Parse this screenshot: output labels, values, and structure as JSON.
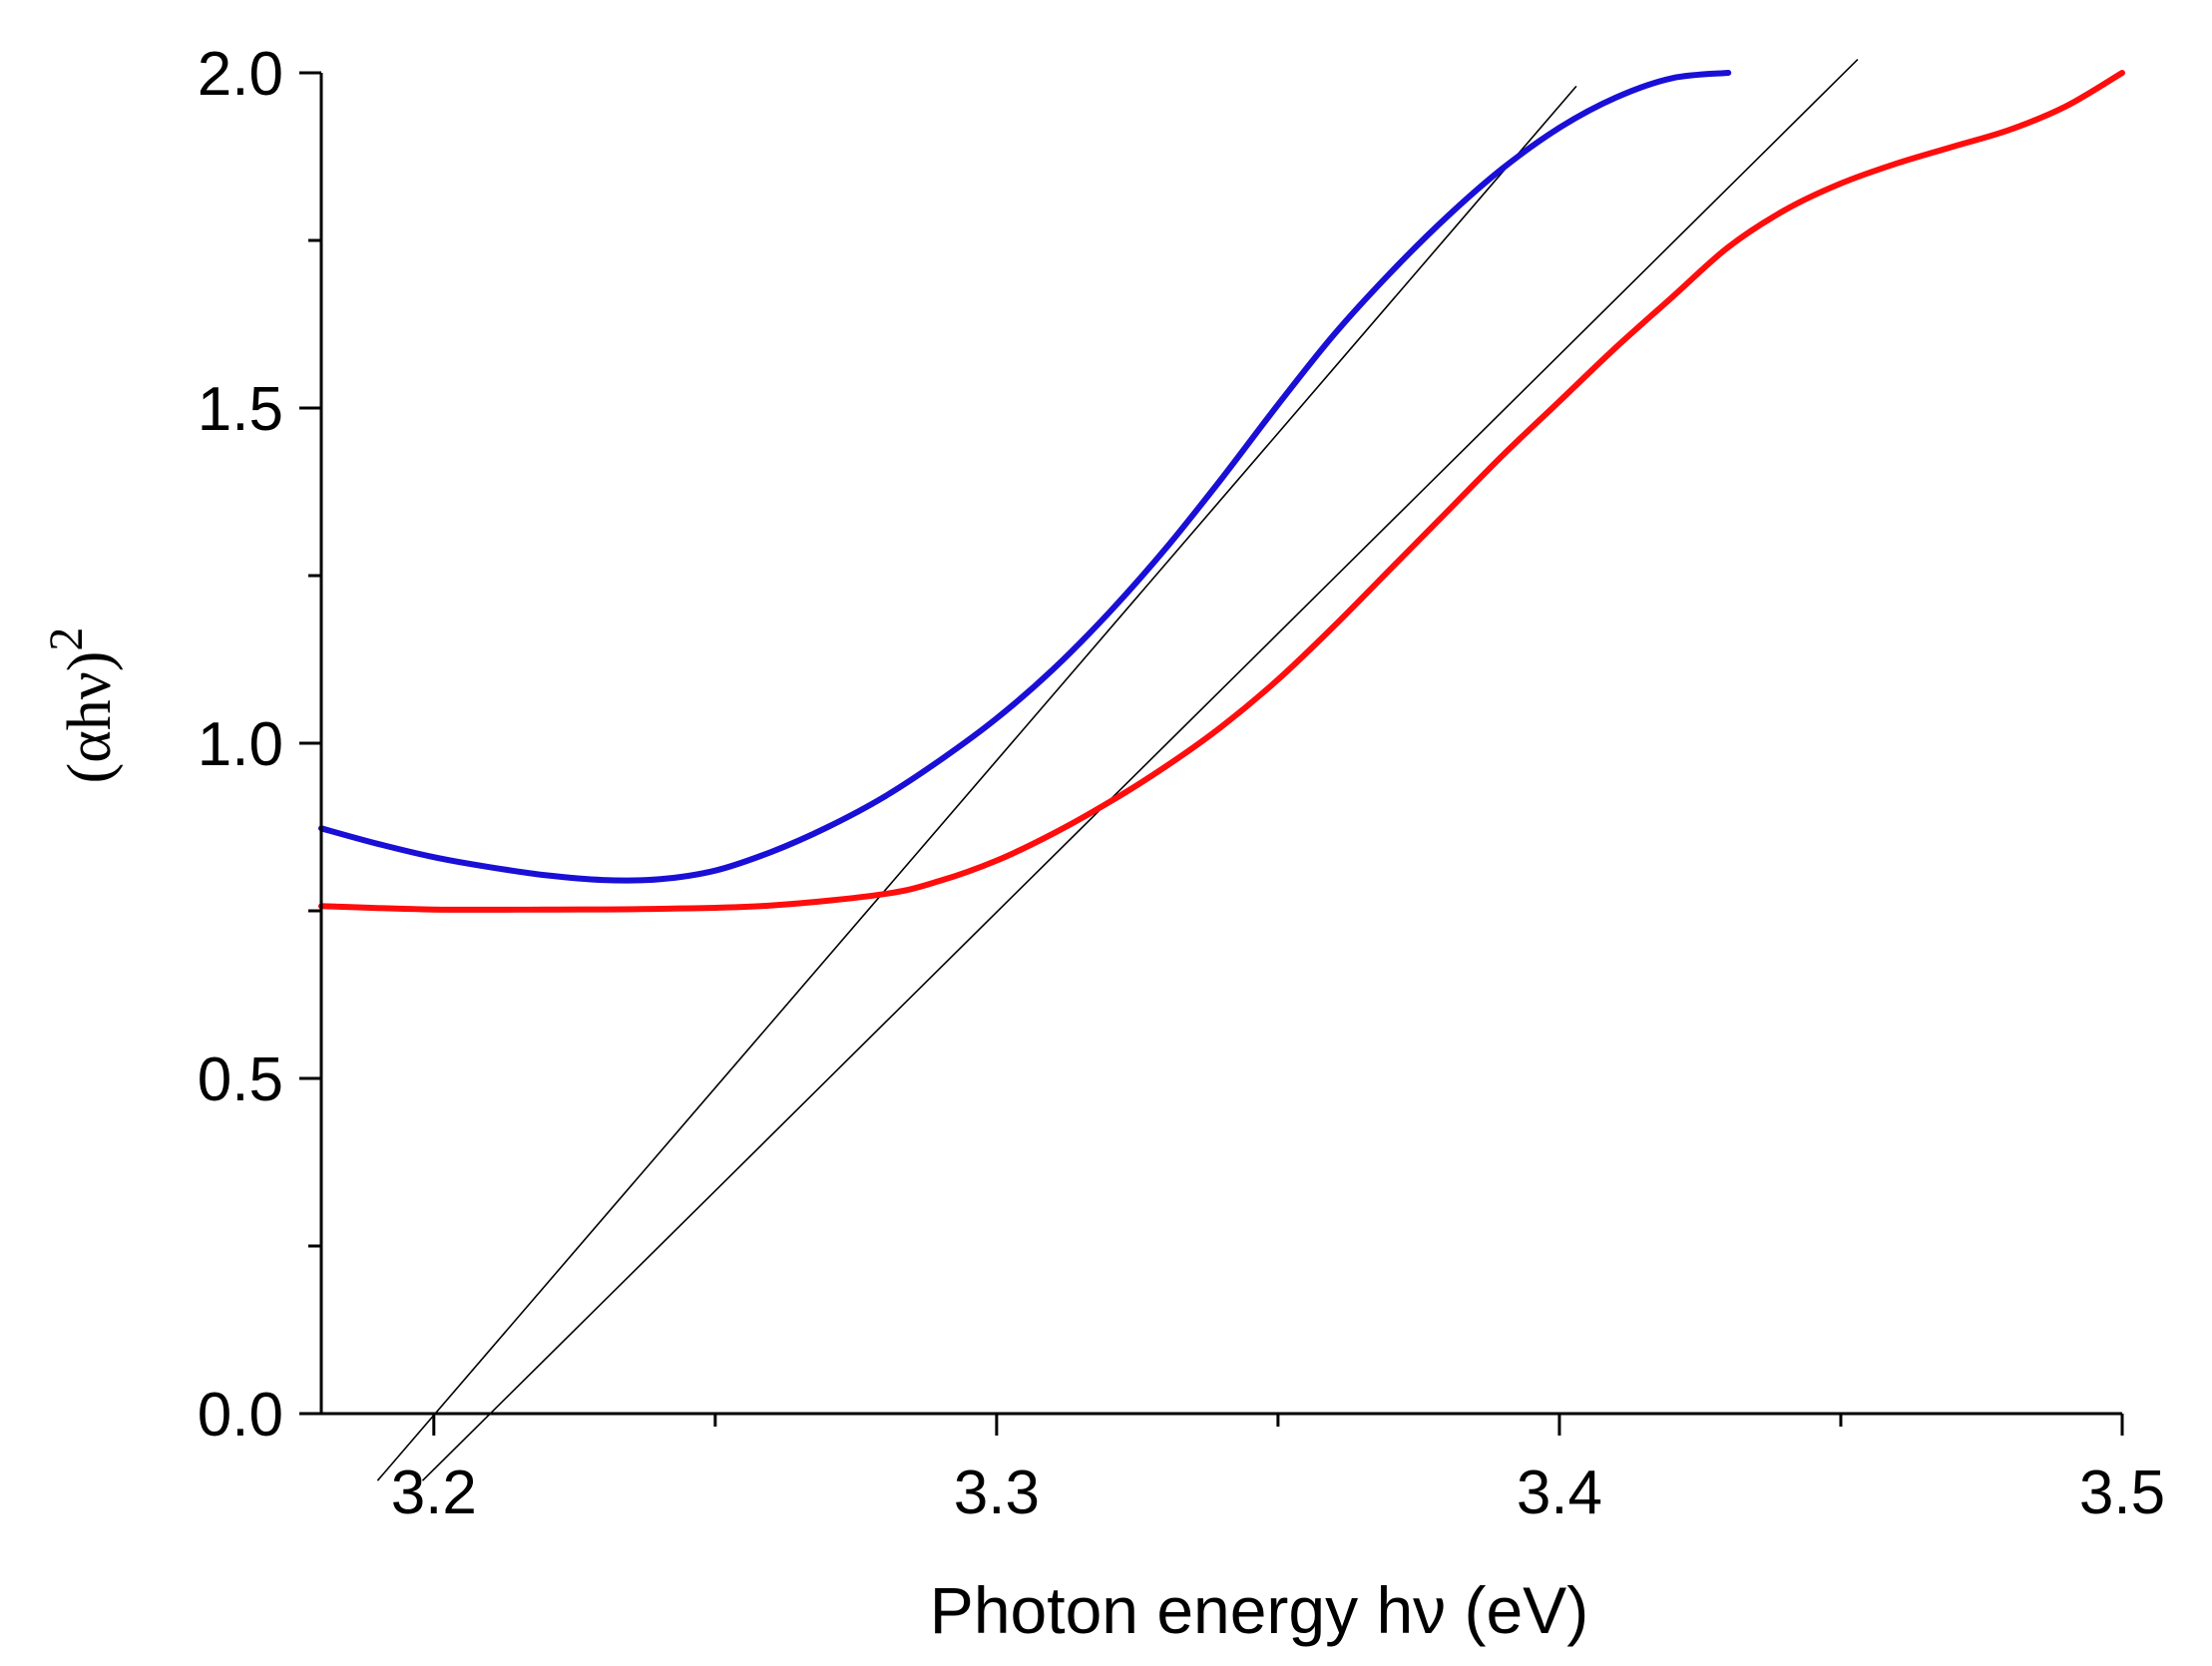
{
  "chart_data": {
    "type": "line",
    "title": "",
    "xlabel": "Photon energy hν  (eV)",
    "ylabel": {
      "text": "(αhν)",
      "superscript": "2"
    },
    "xlim": [
      3.18,
      3.5
    ],
    "ylim": [
      0.0,
      2.0
    ],
    "x_ticks": [
      {
        "value": 3.2,
        "label": "3.2"
      },
      {
        "value": 3.3,
        "label": "3.3"
      },
      {
        "value": 3.4,
        "label": "3.4"
      },
      {
        "value": 3.5,
        "label": "3.5"
      }
    ],
    "x_minor_ticks": [
      3.25,
      3.35,
      3.45
    ],
    "y_ticks": [
      {
        "value": 0.0,
        "label": "0.0"
      },
      {
        "value": 0.5,
        "label": "0.5"
      },
      {
        "value": 1.0,
        "label": "1.0"
      },
      {
        "value": 1.5,
        "label": "1.5"
      },
      {
        "value": 2.0,
        "label": "2.0"
      }
    ],
    "y_minor_ticks": [
      0.25,
      0.75,
      1.25,
      1.75
    ],
    "grid": false,
    "series": [
      {
        "name": "blue",
        "color": "#1a0fd6",
        "x": [
          3.18,
          3.19,
          3.2,
          3.21,
          3.22,
          3.23,
          3.24,
          3.25,
          3.26,
          3.27,
          3.28,
          3.29,
          3.3,
          3.31,
          3.32,
          3.33,
          3.34,
          3.35,
          3.36,
          3.37,
          3.38,
          3.39,
          3.4,
          3.41,
          3.42,
          3.43
        ],
        "y": [
          0.873,
          0.85,
          0.83,
          0.815,
          0.803,
          0.796,
          0.797,
          0.81,
          0.838,
          0.875,
          0.92,
          0.975,
          1.037,
          1.11,
          1.195,
          1.29,
          1.395,
          1.505,
          1.61,
          1.702,
          1.785,
          1.858,
          1.918,
          1.963,
          1.992,
          2.0
        ]
      },
      {
        "name": "red",
        "color": "#ff0d0d",
        "x": [
          3.18,
          3.2,
          3.22,
          3.24,
          3.26,
          3.28,
          3.29,
          3.3,
          3.31,
          3.32,
          3.33,
          3.34,
          3.35,
          3.36,
          3.37,
          3.38,
          3.39,
          3.4,
          3.41,
          3.42,
          3.43,
          3.44,
          3.45,
          3.46,
          3.47,
          3.48,
          3.49,
          3.5
        ],
        "y": [
          0.757,
          0.752,
          0.752,
          0.753,
          0.758,
          0.775,
          0.795,
          0.825,
          0.865,
          0.912,
          0.965,
          1.025,
          1.095,
          1.175,
          1.26,
          1.345,
          1.43,
          1.51,
          1.59,
          1.665,
          1.74,
          1.795,
          1.835,
          1.865,
          1.89,
          1.915,
          1.95,
          2.0
        ]
      }
    ],
    "fit_lines": [
      {
        "name": "blue-tangent",
        "color": "#000000",
        "x": [
          3.19,
          3.403
        ],
        "y": [
          -0.1,
          1.98
        ]
      },
      {
        "name": "red-tangent",
        "color": "#000000",
        "x": [
          3.198,
          3.453
        ],
        "y": [
          -0.1,
          2.02
        ]
      }
    ]
  }
}
